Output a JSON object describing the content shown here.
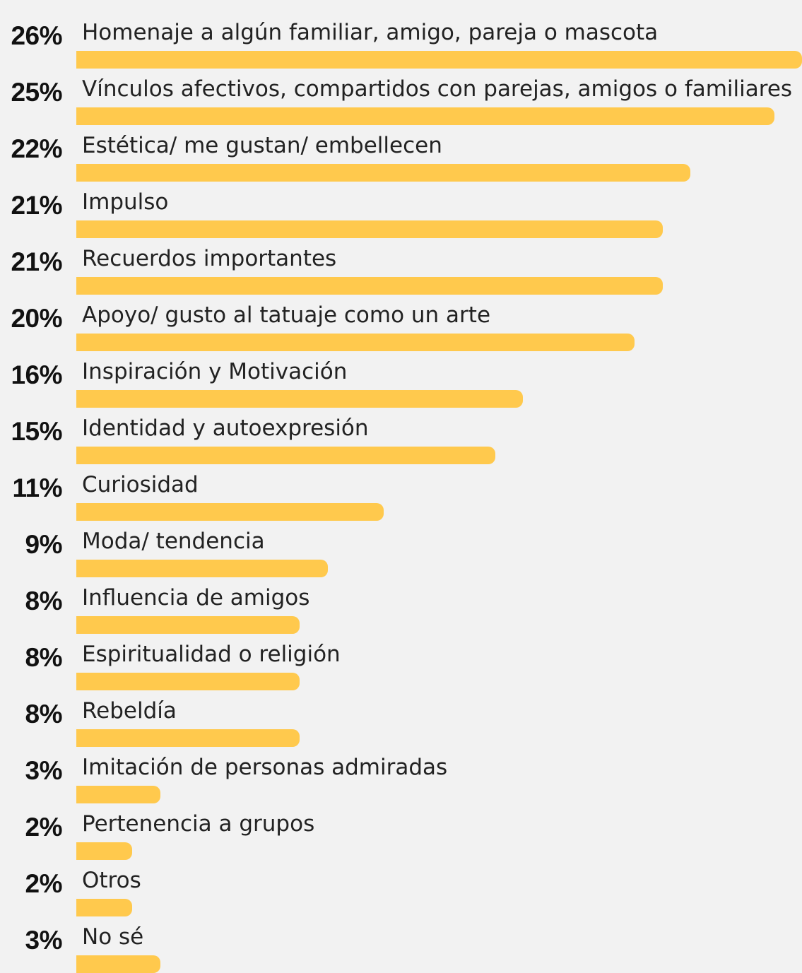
{
  "chart_data": {
    "type": "bar",
    "orientation": "horizontal",
    "categories": [
      "Homenaje a algún familiar, amigo, pareja o mascota",
      "Vínculos afectivos, compartidos con parejas, amigos o familiares",
      "Estética/ me gustan/ embellecen",
      "Impulso",
      "Recuerdos importantes",
      "Apoyo/ gusto al tatuaje como un arte",
      "Inspiración y Motivación",
      "Identidad y autoexpresión",
      "Curiosidad",
      "Moda/ tendencia",
      "Influencia de amigos",
      "Espiritualidad o religión",
      "Rebeldía",
      "Imitación de personas admiradas",
      "Pertenencia a grupos",
      "Otros",
      "No sé"
    ],
    "values": [
      26,
      25,
      22,
      21,
      21,
      20,
      16,
      15,
      11,
      9,
      8,
      8,
      8,
      3,
      2,
      2,
      3
    ],
    "value_labels": [
      "26%",
      "25%",
      "22%",
      "21%",
      "21%",
      "20%",
      "16%",
      "15%",
      "11%",
      "9%",
      "8%",
      "8%",
      "8%",
      "3%",
      "2%",
      "2%",
      "3%"
    ],
    "xlim": [
      0,
      26
    ],
    "grid": false,
    "bar_color": "#ffc94d"
  }
}
